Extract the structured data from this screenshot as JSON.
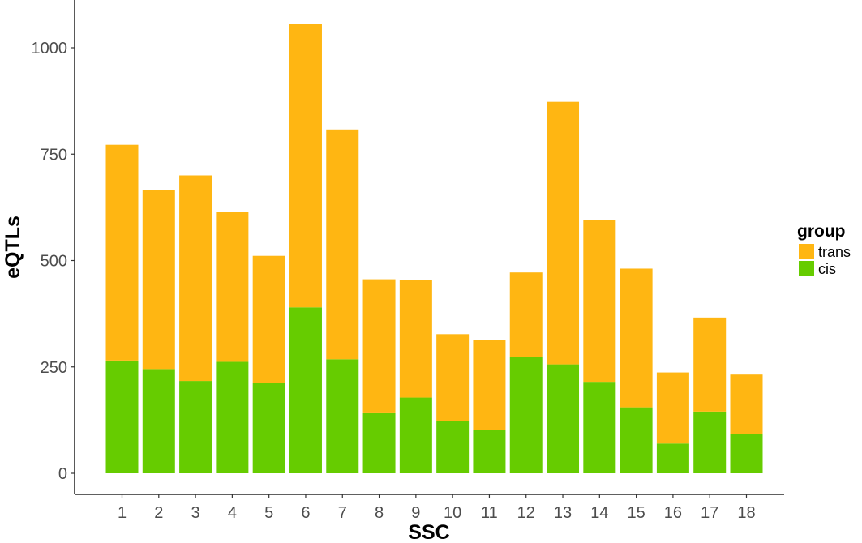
{
  "chart_data": {
    "type": "bar",
    "stacked": true,
    "title": "",
    "xlabel": "SSC",
    "ylabel": "eQTLs",
    "categories": [
      "1",
      "2",
      "3",
      "4",
      "5",
      "6",
      "7",
      "8",
      "9",
      "10",
      "11",
      "12",
      "13",
      "14",
      "15",
      "16",
      "17",
      "18"
    ],
    "series": [
      {
        "name": "cis",
        "color": "#66CC00",
        "values": [
          265,
          245,
          217,
          262,
          213,
          390,
          268,
          143,
          178,
          122,
          102,
          273,
          256,
          215,
          155,
          70,
          145,
          93
        ]
      },
      {
        "name": "trans",
        "color": "#FFB612",
        "values": [
          507,
          421,
          483,
          353,
          298,
          667,
          540,
          313,
          276,
          205,
          212,
          199,
          617,
          381,
          326,
          167,
          221,
          139
        ]
      }
    ],
    "totals": [
      772,
      666,
      700,
      615,
      511,
      1057,
      808,
      456,
      454,
      327,
      314,
      472,
      873,
      596,
      481,
      237,
      366,
      232
    ],
    "yticks": [
      0,
      250,
      500,
      750,
      1000
    ],
    "ylim": [
      0,
      1110
    ],
    "grid": false,
    "legend": {
      "title": "group",
      "placement": "right",
      "entries": [
        {
          "label": "trans",
          "color": "#FFB612"
        },
        {
          "label": "cis",
          "color": "#66CC00"
        }
      ]
    }
  }
}
